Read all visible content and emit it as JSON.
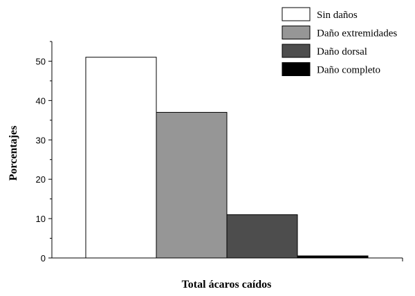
{
  "chart_data": {
    "type": "bar",
    "title": "",
    "xlabel": "Total ácaros caídos",
    "ylabel": "Porcentajes",
    "ylim": [
      0,
      55
    ],
    "yticks": [
      0,
      10,
      20,
      30,
      40,
      50
    ],
    "grid": false,
    "legend_position": "top-right",
    "series": [
      {
        "name": "Sin daños",
        "values": [
          51
        ],
        "color": "#ffffff"
      },
      {
        "name": "Daño extremidades",
        "values": [
          37
        ],
        "color": "#969696"
      },
      {
        "name": "Daño dorsal",
        "values": [
          11
        ],
        "color": "#4d4d4d"
      },
      {
        "name": "Daño completo",
        "values": [
          0.5
        ],
        "color": "#000000"
      }
    ]
  }
}
